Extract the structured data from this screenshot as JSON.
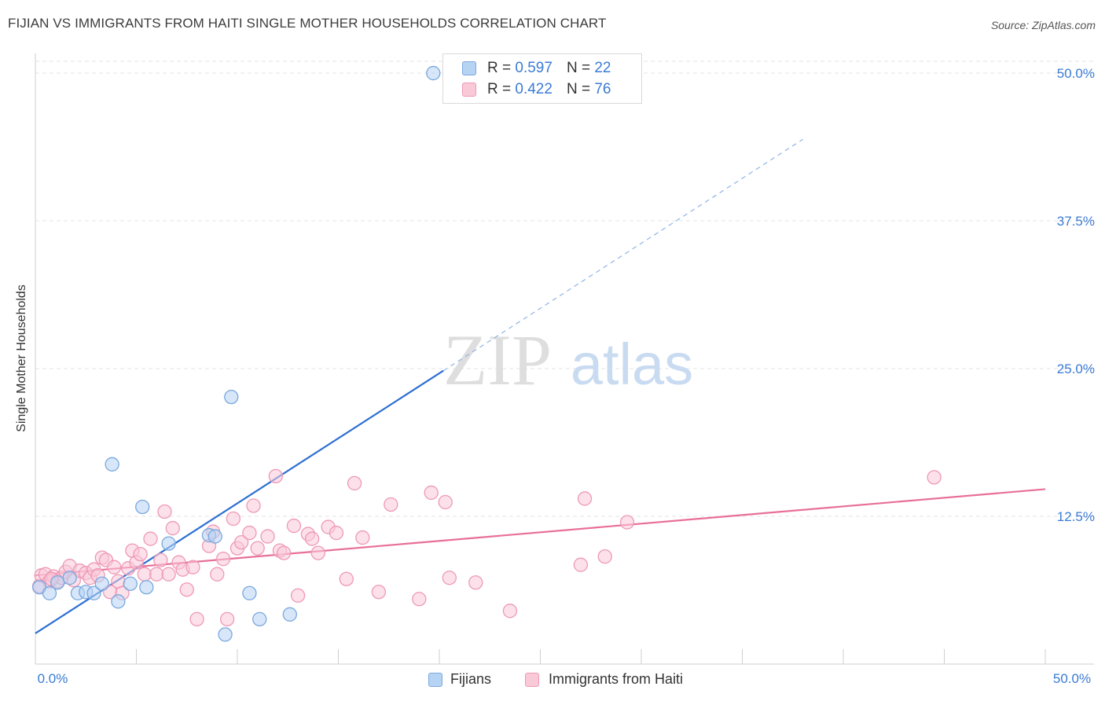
{
  "header": {
    "title": "FIJIAN VS IMMIGRANTS FROM HAITI SINGLE MOTHER HOUSEHOLDS CORRELATION CHART",
    "source": "Source: ZipAtlas.com"
  },
  "watermark": {
    "zip": "ZIP",
    "atlas": "atlas"
  },
  "legend_top": {
    "fijians": {
      "r_label": "R =",
      "r_value": "0.597",
      "n_label": "N =",
      "n_value": "22"
    },
    "haiti": {
      "r_label": "R =",
      "r_value": "0.422",
      "n_label": "N =",
      "n_value": "76"
    }
  },
  "legend_bottom": {
    "fijians": "Fijians",
    "haiti": "Immigrants from Haiti"
  },
  "colors": {
    "fijians_fill": "#b7d3f4",
    "fijians_stroke": "#7aa8de",
    "fijians_line": "#2e6fd2",
    "haiti_fill": "#f9c9d8",
    "haiti_stroke": "#ee99b5",
    "haiti_line": "#e86f97",
    "tick_label": "#3b7bd4",
    "grid": "#e3e3e3"
  },
  "chart_data": {
    "type": "scatter",
    "title": "FIJIAN VS IMMIGRANTS FROM HAITI SINGLE MOTHER HOUSEHOLDS CORRELATION CHART",
    "xlabel": "",
    "ylabel": "Single Mother Households",
    "xlim": [
      0,
      50
    ],
    "ylim": [
      0,
      51
    ],
    "x_tick_labels": [
      "0.0%",
      "50.0%"
    ],
    "y_ticks": [
      12.5,
      25.0,
      37.5,
      50.0
    ],
    "y_tick_labels": [
      "12.5%",
      "25.0%",
      "37.5%",
      "50.0%"
    ],
    "grid": true,
    "legend_position": "top-center",
    "series": [
      {
        "name": "Fijians",
        "points": [
          [
            0.2,
            6.5
          ],
          [
            0.7,
            6.0
          ],
          [
            1.1,
            6.9
          ],
          [
            1.7,
            7.3
          ],
          [
            2.1,
            6.0
          ],
          [
            2.5,
            6.1
          ],
          [
            2.9,
            6.0
          ],
          [
            3.3,
            6.8
          ],
          [
            3.8,
            16.9
          ],
          [
            4.1,
            5.3
          ],
          [
            4.7,
            6.8
          ],
          [
            5.3,
            13.3
          ],
          [
            5.5,
            6.5
          ],
          [
            6.6,
            10.2
          ],
          [
            8.6,
            10.9
          ],
          [
            8.9,
            10.8
          ],
          [
            9.4,
            2.5
          ],
          [
            9.7,
            22.6
          ],
          [
            10.6,
            6.0
          ],
          [
            11.1,
            3.8
          ],
          [
            12.6,
            4.2
          ],
          [
            19.7,
            50.0
          ]
        ],
        "trend": {
          "x": [
            0,
            50
          ],
          "y": [
            2.6,
            57.6
          ],
          "solid_until_x": 20.2
        }
      },
      {
        "name": "Immigrants from Haiti",
        "points": [
          [
            0.2,
            6.6
          ],
          [
            0.3,
            7.5
          ],
          [
            0.5,
            7.6
          ],
          [
            0.7,
            7.0
          ],
          [
            0.9,
            7.4
          ],
          [
            1.1,
            7.0
          ],
          [
            1.3,
            7.3
          ],
          [
            1.5,
            7.8
          ],
          [
            1.7,
            8.3
          ],
          [
            1.9,
            7.1
          ],
          [
            2.2,
            7.9
          ],
          [
            2.5,
            7.7
          ],
          [
            2.7,
            7.3
          ],
          [
            2.9,
            8.0
          ],
          [
            3.1,
            7.5
          ],
          [
            3.3,
            9.0
          ],
          [
            3.5,
            8.8
          ],
          [
            3.7,
            6.1
          ],
          [
            3.9,
            8.2
          ],
          [
            4.1,
            7.0
          ],
          [
            4.3,
            6.0
          ],
          [
            4.6,
            8.1
          ],
          [
            4.8,
            9.6
          ],
          [
            5.0,
            8.6
          ],
          [
            5.2,
            9.3
          ],
          [
            5.4,
            7.6
          ],
          [
            5.7,
            10.6
          ],
          [
            6.0,
            7.6
          ],
          [
            6.2,
            8.8
          ],
          [
            6.4,
            12.9
          ],
          [
            6.6,
            7.6
          ],
          [
            6.8,
            11.5
          ],
          [
            7.1,
            8.6
          ],
          [
            7.3,
            8.0
          ],
          [
            7.5,
            6.3
          ],
          [
            7.8,
            8.2
          ],
          [
            8.0,
            3.8
          ],
          [
            8.6,
            10.0
          ],
          [
            8.8,
            11.2
          ],
          [
            9.0,
            7.6
          ],
          [
            9.3,
            8.9
          ],
          [
            9.5,
            3.8
          ],
          [
            9.8,
            12.3
          ],
          [
            10.0,
            9.8
          ],
          [
            10.2,
            10.3
          ],
          [
            10.6,
            11.1
          ],
          [
            10.8,
            13.4
          ],
          [
            11.0,
            9.8
          ],
          [
            11.5,
            10.8
          ],
          [
            11.9,
            15.9
          ],
          [
            12.1,
            9.6
          ],
          [
            12.3,
            9.4
          ],
          [
            12.8,
            11.7
          ],
          [
            13.0,
            5.8
          ],
          [
            13.5,
            11.0
          ],
          [
            13.7,
            10.6
          ],
          [
            14.0,
            9.4
          ],
          [
            14.5,
            11.6
          ],
          [
            14.9,
            11.1
          ],
          [
            15.4,
            7.2
          ],
          [
            15.8,
            15.3
          ],
          [
            16.2,
            10.7
          ],
          [
            17.0,
            6.1
          ],
          [
            17.6,
            13.5
          ],
          [
            19.0,
            5.5
          ],
          [
            19.6,
            14.5
          ],
          [
            20.3,
            13.7
          ],
          [
            20.5,
            7.3
          ],
          [
            21.8,
            6.9
          ],
          [
            23.5,
            4.5
          ],
          [
            27.0,
            8.4
          ],
          [
            27.2,
            14.0
          ],
          [
            28.2,
            9.1
          ],
          [
            29.3,
            12.0
          ],
          [
            44.5,
            15.8
          ],
          [
            0.8,
            7.2
          ]
        ],
        "trend": {
          "x": [
            0,
            50
          ],
          "y": [
            7.5,
            14.8
          ]
        }
      }
    ]
  }
}
